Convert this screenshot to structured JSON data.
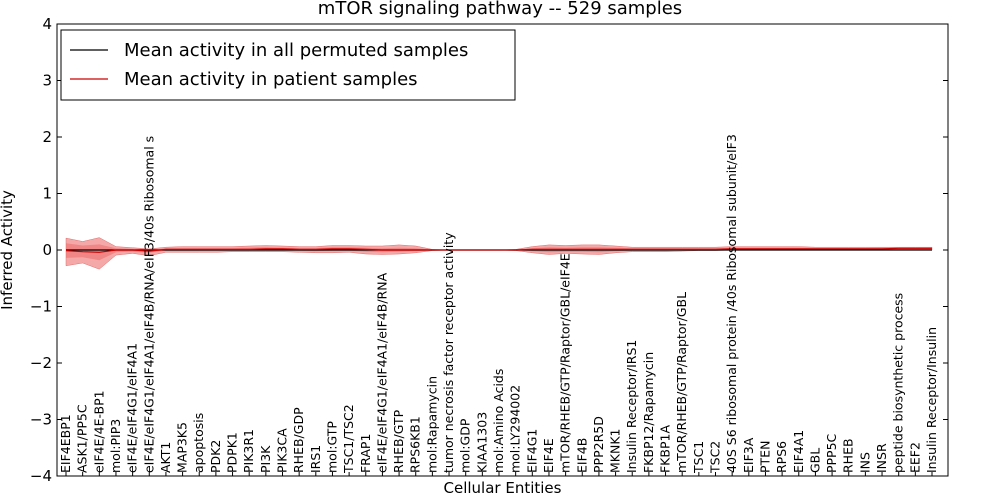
{
  "chart_data": {
    "type": "line",
    "title": "mTOR signaling pathway -- 529 samples",
    "xlabel": "Cellular Entities",
    "ylabel": "Inferred Activity",
    "ylim": [
      -4,
      4
    ],
    "yticks": [
      -4,
      -3,
      -2,
      -1,
      0,
      1,
      2,
      3,
      4
    ],
    "yticklabels": [
      "−4",
      "−3",
      "−2",
      "−1",
      "0",
      "1",
      "2",
      "3",
      "4"
    ],
    "grid": false,
    "legend_position": "top-left",
    "categories": [
      "EIF4EBP1",
      "ASK1/PP5C",
      "eIF4E/4E-BP1",
      "mol:PIP3",
      "eIF4E/eIF4G1/eIF4A1",
      "eIF4E/eIF4G1/eIF4A1/eIF4B/RNA/eIF3/40s Ribosomal s",
      "AKT1",
      "MAP3K5",
      "apoptosis",
      "PDK2",
      "PDPK1",
      "PIK3R1",
      "PI3K",
      "PIK3CA",
      "RHEB/GDP",
      "IRS1",
      "mol:GTP",
      "TSC1/TSC2",
      "FRAP1",
      "eIF4E/eIF4G1/eIF4A1/eIF4B/RNA",
      "RHEB/GTP",
      "RPS6KB1",
      "mol:Rapamycin",
      "tumor necrosis factor receptor activity",
      "mol:GDP",
      "KIAA1303",
      "mol:Amino Acids",
      "mol:LY294002",
      "EIF4G1",
      "EIF4E",
      "mTOR/RHEB/GTP/Raptor/GBL/eIF4E",
      "EIF4B",
      "PPP2R5D",
      "MKNK1",
      "Insulin Receptor/IRS1",
      "FKBP12/Rapamycin",
      "FKBP1A",
      "mTOR/RHEB/GTP/Raptor/GBL",
      "TSC1",
      "TSC2",
      "40S S6 ribosomal protein /40s Ribosomal subunit/eIF3",
      "EIF3A",
      "PTEN",
      "RPS6",
      "EIF4A1",
      "GBL",
      "PPP5C",
      "RHEB",
      "INS",
      "INSR",
      "peptide biosynthetic process",
      "EEF2",
      "Insulin Receptor/Insulin"
    ],
    "series": [
      {
        "name": "Mean activity in all permuted samples",
        "color": "#000000",
        "values": [
          0,
          0,
          0,
          0,
          0,
          0,
          0,
          0,
          0,
          0,
          0,
          0,
          0,
          0,
          0,
          0,
          0,
          0,
          0,
          0,
          0,
          0,
          0,
          0,
          0,
          0,
          0,
          0,
          0,
          0,
          0,
          0,
          0,
          0,
          0,
          0,
          0,
          0,
          0,
          0,
          0,
          0,
          0,
          0,
          0,
          0,
          0,
          0,
          0,
          0,
          0,
          0,
          0
        ]
      },
      {
        "name": "Mean activity in patient samples",
        "color": "#cc0000",
        "fill": "#f28b8b",
        "values": [
          -0.01,
          -0.03,
          -0.04,
          0,
          0,
          -0.02,
          0.01,
          0.01,
          0.01,
          0.01,
          0.01,
          0.01,
          0.02,
          0.02,
          0.01,
          0.01,
          0.02,
          0.02,
          0.01,
          0,
          0,
          0,
          0,
          0,
          0,
          0,
          0,
          0,
          0.01,
          0.01,
          0.01,
          0.01,
          0.01,
          0.01,
          0.01,
          0.01,
          0.01,
          0.01,
          0.01,
          0.01,
          0.02,
          0.02,
          0.02,
          0.02,
          0.02,
          0.02,
          0.02,
          0.02,
          0.02,
          0.02,
          0.03,
          0.03,
          0.03
        ],
        "band_outer_upper": [
          0.21,
          0.15,
          0.22,
          0.06,
          0.04,
          0.02,
          0.05,
          0.06,
          0.06,
          0.06,
          0.06,
          0.07,
          0.08,
          0.07,
          0.06,
          0.06,
          0.08,
          0.08,
          0.07,
          0.07,
          0.09,
          0.07,
          0.01,
          0,
          0,
          0,
          0,
          0.01,
          0.06,
          0.09,
          0.08,
          0.09,
          0.09,
          0.07,
          0.05,
          0.05,
          0.05,
          0.05,
          0.05,
          0.05,
          0.06,
          0.06,
          0.06,
          0.06,
          0.06,
          0.05,
          0.05,
          0.05,
          0.05,
          0.05,
          0.05,
          0.05,
          0.05
        ],
        "band_outer_lower": [
          -0.28,
          -0.23,
          -0.34,
          -0.09,
          -0.06,
          -0.1,
          -0.04,
          -0.04,
          -0.04,
          -0.04,
          -0.03,
          -0.03,
          -0.03,
          -0.03,
          -0.04,
          -0.05,
          -0.05,
          -0.04,
          -0.07,
          -0.08,
          -0.07,
          -0.05,
          -0.01,
          0,
          0,
          0,
          0,
          -0.01,
          -0.05,
          -0.08,
          -0.06,
          -0.07,
          -0.08,
          -0.05,
          -0.03,
          -0.03,
          -0.03,
          -0.02,
          -0.01,
          -0.01,
          0,
          0,
          0,
          0,
          0,
          0,
          0,
          0,
          0,
          0,
          0,
          0,
          0
        ],
        "band_inner_upper": [
          0.12,
          0.08,
          0.1,
          0.03,
          0.02,
          0,
          0.03,
          0.03,
          0.03,
          0.03,
          0.03,
          0.04,
          0.05,
          0.04,
          0.03,
          0.03,
          0.05,
          0.05,
          0.04,
          0.03,
          0.04,
          0.03,
          0.005,
          0,
          0,
          0,
          0,
          0.005,
          0.03,
          0.05,
          0.04,
          0.05,
          0.05,
          0.04,
          0.03,
          0.03,
          0.03,
          0.03,
          0.03,
          0.03,
          0.04,
          0.04,
          0.04,
          0.04,
          0.04,
          0.035,
          0.035,
          0.035,
          0.035,
          0.04,
          0.04,
          0.04,
          0.04
        ],
        "band_inner_lower": [
          -0.14,
          -0.13,
          -0.18,
          -0.04,
          -0.03,
          -0.05,
          -0.01,
          -0.01,
          -0.01,
          -0.01,
          -0.01,
          -0.01,
          0,
          0,
          -0.01,
          -0.02,
          -0.01,
          -0.01,
          -0.03,
          -0.04,
          -0.03,
          -0.02,
          -0.005,
          0,
          0,
          0,
          0,
          -0.005,
          -0.02,
          -0.04,
          -0.03,
          -0.03,
          -0.04,
          -0.02,
          -0.01,
          -0.01,
          -0.01,
          0,
          0,
          0,
          0.01,
          0.01,
          0.01,
          0.01,
          0.01,
          0.01,
          0.01,
          0.01,
          0.01,
          0.01,
          0.015,
          0.015,
          0.015
        ]
      }
    ]
  }
}
